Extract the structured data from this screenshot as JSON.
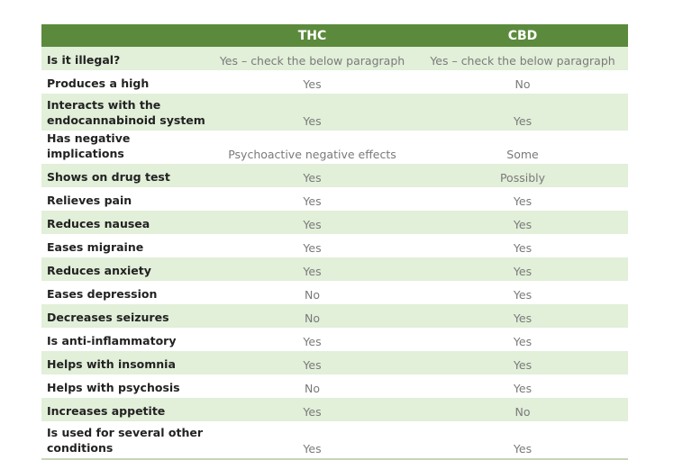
{
  "header": {
    "col1": "",
    "thc": "THC",
    "cbd": "CBD"
  },
  "colors": {
    "header_bg": "#5b8a3c",
    "stripe": "#e2efd9"
  },
  "rows": [
    {
      "label": "Is it illegal?",
      "thc": "Yes – check the below paragraph",
      "cbd": "Yes – check the below paragraph"
    },
    {
      "label": "Produces a high",
      "thc": "Yes",
      "cbd": "No"
    },
    {
      "label": "Interacts with the endocannabinoid system",
      "thc": "Yes",
      "cbd": "Yes"
    },
    {
      "label": "Has negative implications",
      "thc": "Psychoactive negative effects",
      "cbd": "Some"
    },
    {
      "label": "Shows on drug test",
      "thc": "Yes",
      "cbd": "Possibly"
    },
    {
      "label": "Relieves pain",
      "thc": "Yes",
      "cbd": "Yes"
    },
    {
      "label": "Reduces nausea",
      "thc": "Yes",
      "cbd": "Yes"
    },
    {
      "label": "Eases migraine",
      "thc": "Yes",
      "cbd": "Yes"
    },
    {
      "label": "Reduces anxiety",
      "thc": "Yes",
      "cbd": "Yes"
    },
    {
      "label": "Eases depression",
      "thc": "No",
      "cbd": "Yes"
    },
    {
      "label": "Decreases seizures",
      "thc": "No",
      "cbd": "Yes"
    },
    {
      "label": "Is anti-inflammatory",
      "thc": "Yes",
      "cbd": "Yes"
    },
    {
      "label": "Helps with insomnia",
      "thc": "Yes",
      "cbd": "Yes"
    },
    {
      "label": "Helps with psychosis",
      "thc": "No",
      "cbd": "Yes"
    },
    {
      "label": "Increases appetite",
      "thc": "Yes",
      "cbd": "No"
    },
    {
      "label": "Is used for several other conditions",
      "thc": "Yes",
      "cbd": "Yes"
    }
  ]
}
